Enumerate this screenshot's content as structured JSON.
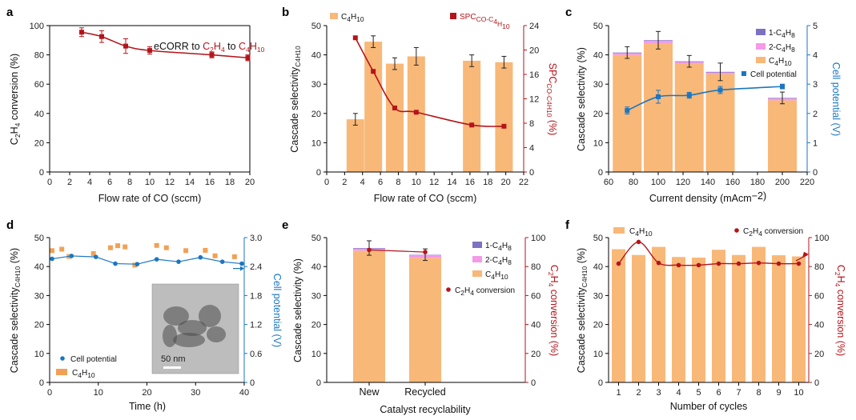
{
  "colors": {
    "bar": "#F8B878",
    "red": "#B5141B",
    "blue": "#1A76C2",
    "purple": "#7D72C2",
    "pink": "#F49AE8",
    "orange_marker": "#F2A154",
    "err": "#222222"
  },
  "chart_data": [
    {
      "id": "a",
      "panel_label": "a",
      "type": "line",
      "xlabel": "Flow rate of CO (sccm)",
      "ylabel": "C₂H₄ conversion (%)",
      "xlim": [
        0,
        20
      ],
      "xticks": [
        0,
        2,
        4,
        6,
        8,
        10,
        12,
        14,
        16,
        18,
        20
      ],
      "ylim": [
        0,
        100
      ],
      "yticks": [
        0,
        20,
        40,
        60,
        80,
        100
      ],
      "annotation": "eCORR to ",
      "annotation_c2h4": "C₂H₄",
      "annotation_to": " to ",
      "annotation_c4h10": "C₄H₁₀",
      "points": [
        {
          "x": 3.2,
          "y": 95.5,
          "err": 3
        },
        {
          "x": 5.2,
          "y": 92.5,
          "err": 4
        },
        {
          "x": 7.6,
          "y": 86,
          "err": 5
        },
        {
          "x": 10,
          "y": 83,
          "err": 2.5
        },
        {
          "x": 16.2,
          "y": 80,
          "err": 2
        },
        {
          "x": 19.8,
          "y": 78,
          "err": 2
        }
      ]
    },
    {
      "id": "b",
      "panel_label": "b",
      "type": "bar",
      "xlabel": "Flow rate of CO (sccm)",
      "ylabel": "Cascade selectivity C₄H₁₀ (%)",
      "y2label": "SPC CO–C4H10 (%)",
      "xlim": [
        0,
        22
      ],
      "xticks": [
        0,
        2,
        4,
        6,
        8,
        10,
        12,
        14,
        16,
        18,
        20,
        22
      ],
      "ylim": [
        0,
        50
      ],
      "yticks": [
        0,
        10,
        20,
        30,
        40,
        50
      ],
      "y2lim": [
        0,
        24
      ],
      "y2ticks": [
        0,
        4,
        8,
        12,
        16,
        20,
        24
      ],
      "legend": [
        "C₄H₁₀",
        "SPC CO–C₄H₁₀"
      ],
      "bars": [
        {
          "x": 3.2,
          "y": 18,
          "err": 2
        },
        {
          "x": 5.2,
          "y": 44.5,
          "err": 2
        },
        {
          "x": 7.6,
          "y": 37,
          "err": 2
        },
        {
          "x": 10,
          "y": 39.5,
          "err": 3
        },
        {
          "x": 16.2,
          "y": 38,
          "err": 2
        },
        {
          "x": 19.8,
          "y": 37.5,
          "err": 2
        }
      ],
      "spc": [
        {
          "x": 3.2,
          "y": 22
        },
        {
          "x": 5.2,
          "y": 16.5
        },
        {
          "x": 7.6,
          "y": 10.5
        },
        {
          "x": 10,
          "y": 9.8
        },
        {
          "x": 16.2,
          "y": 7.7
        },
        {
          "x": 19.8,
          "y": 7.5
        }
      ]
    },
    {
      "id": "c",
      "panel_label": "c",
      "type": "bar",
      "xlabel": "Current density (mAcm⁻²)",
      "ylabel": "Cascade selectivity (%)",
      "y2label": "Cell potential (V)",
      "xlim": [
        60,
        220
      ],
      "xticks": [
        60,
        80,
        100,
        120,
        140,
        160,
        180,
        200,
        220
      ],
      "ylim": [
        0,
        50
      ],
      "yticks": [
        0,
        10,
        20,
        30,
        40,
        50
      ],
      "y2lim": [
        0,
        5
      ],
      "y2ticks": [
        0,
        1,
        2,
        3,
        4,
        5
      ],
      "legend": [
        "1-C₄H₈",
        "2-C₄H₈",
        "C₄H₁₀",
        "Cell potential"
      ],
      "bars": [
        {
          "x": 75,
          "c4h10": 40,
          "c2": 0.6,
          "c1": 0.2,
          "err": 2
        },
        {
          "x": 100,
          "c4h10": 44,
          "c2": 0.8,
          "c1": 0.2,
          "err": 3
        },
        {
          "x": 125,
          "c4h10": 37,
          "c2": 0.6,
          "c1": 0.2,
          "err": 2
        },
        {
          "x": 150,
          "c4h10": 33.5,
          "c2": 0.5,
          "c1": 0.2,
          "err": 3
        },
        {
          "x": 200,
          "c4h10": 24.5,
          "c2": 0.6,
          "c1": 0.2,
          "err": 2
        }
      ],
      "potential": [
        {
          "x": 75,
          "y": 2.1,
          "err": 0.12
        },
        {
          "x": 100,
          "y": 2.57,
          "err": 0.22
        },
        {
          "x": 125,
          "y": 2.62,
          "err": 0.1
        },
        {
          "x": 150,
          "y": 2.8,
          "err": 0.12
        },
        {
          "x": 200,
          "y": 2.92,
          "err": 0.08
        }
      ]
    },
    {
      "id": "d",
      "panel_label": "d",
      "type": "scatter",
      "xlabel": "Time (h)",
      "ylabel": "Cascade selectivity C₄H₁₀ (%)",
      "y2label": "Cell potential (V)",
      "xlim": [
        0,
        40
      ],
      "xticks": [
        0,
        10,
        20,
        30,
        40
      ],
      "ylim": [
        0,
        50
      ],
      "yticks": [
        0,
        10,
        20,
        30,
        40,
        50
      ],
      "y2lim": [
        0,
        3.0
      ],
      "y2ticks": [
        "0",
        "0.6",
        "1.2",
        "1.8",
        "2.4",
        "3.0"
      ],
      "legend": [
        "Cell potential",
        "C₄H₁₀"
      ],
      "inset_scale": "50 nm",
      "c4h10": [
        {
          "x": 0.5,
          "y": 45.5
        },
        {
          "x": 2.5,
          "y": 46
        },
        {
          "x": 4,
          "y": 43.5
        },
        {
          "x": 9,
          "y": 44.5
        },
        {
          "x": 12.5,
          "y": 46.5
        },
        {
          "x": 14,
          "y": 47.2
        },
        {
          "x": 15.5,
          "y": 46.8
        },
        {
          "x": 17.5,
          "y": 40.5
        },
        {
          "x": 22,
          "y": 47.3
        },
        {
          "x": 24,
          "y": 46.5
        },
        {
          "x": 28,
          "y": 45.5
        },
        {
          "x": 32,
          "y": 45.6
        },
        {
          "x": 34,
          "y": 43.7
        },
        {
          "x": 38,
          "y": 43.4
        }
      ],
      "potential": [
        {
          "x": 0.5,
          "y": 2.56
        },
        {
          "x": 4.5,
          "y": 2.62
        },
        {
          "x": 9.5,
          "y": 2.6
        },
        {
          "x": 13.5,
          "y": 2.46
        },
        {
          "x": 18,
          "y": 2.45
        },
        {
          "x": 22,
          "y": 2.55
        },
        {
          "x": 26.5,
          "y": 2.5
        },
        {
          "x": 31,
          "y": 2.59
        },
        {
          "x": 35.5,
          "y": 2.5
        },
        {
          "x": 39.5,
          "y": 2.46
        }
      ]
    },
    {
      "id": "e",
      "panel_label": "e",
      "type": "bar",
      "xlabel": "Catalyst recyclability",
      "ylabel": "Cascade selectivity (%)",
      "y2label": "C₂H₄ conversion (%)",
      "categories": [
        "New",
        "Recycled"
      ],
      "ylim": [
        0,
        50
      ],
      "yticks": [
        0,
        10,
        20,
        30,
        40,
        50
      ],
      "y2lim": [
        0,
        100
      ],
      "y2ticks": [
        0,
        20,
        40,
        60,
        80,
        100
      ],
      "legend": [
        "1-C₄H₈",
        "2-C₄H₈",
        "C₄H₁₀",
        "C₂H₄ conversion"
      ],
      "bars": [
        {
          "c4h10": 45.5,
          "c2": 0.7,
          "c1": 0.2,
          "err": 2.5
        },
        {
          "c4h10": 43,
          "c2": 1,
          "c1": 0.1,
          "err": 2
        }
      ],
      "conversion": [
        91.5,
        90
      ]
    },
    {
      "id": "f",
      "panel_label": "f",
      "type": "bar",
      "xlabel": "Number of cycles",
      "ylabel": "Cascade selectivity C₄H₁₀ (%)",
      "y2label": "C₂H₄ conversion (%)",
      "categories": [
        "1",
        "2",
        "3",
        "4",
        "5",
        "6",
        "7",
        "8",
        "9",
        "10"
      ],
      "ylim": [
        0,
        50
      ],
      "yticks": [
        0,
        10,
        20,
        30,
        40,
        50
      ],
      "y2lim": [
        0,
        100
      ],
      "y2ticks": [
        0,
        20,
        40,
        60,
        80,
        100
      ],
      "legend": [
        "C₄H₁₀",
        "C₂H₄ conversion"
      ],
      "values": [
        46,
        44,
        46.8,
        43.3,
        43.1,
        45.8,
        44,
        46.8,
        43.9,
        43.5
      ],
      "conversion": [
        82,
        97,
        82.5,
        81,
        81,
        82,
        82,
        82.5,
        82,
        82
      ]
    }
  ]
}
